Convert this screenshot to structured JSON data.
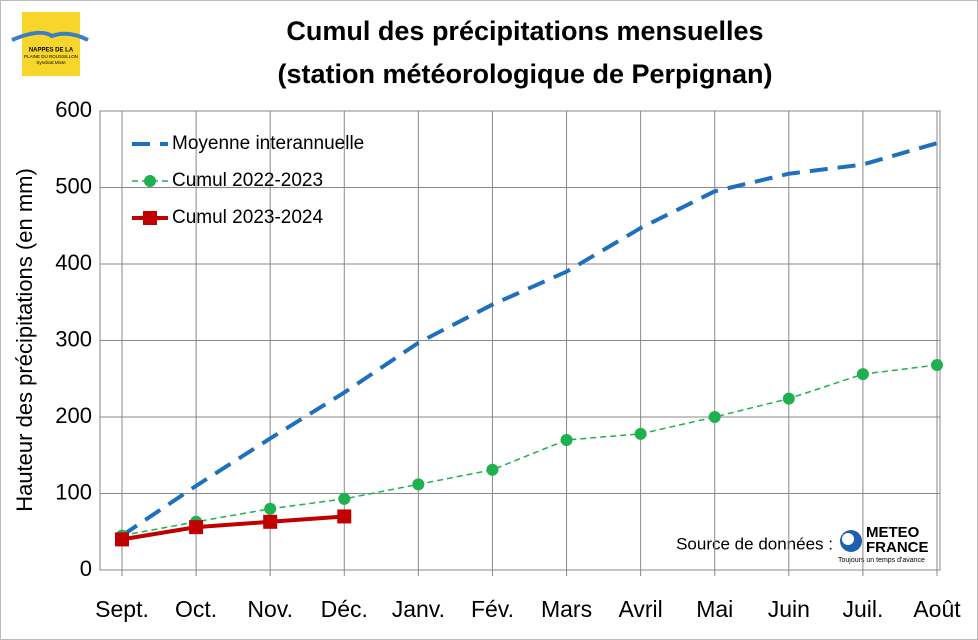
{
  "chart_data": {
    "type": "line",
    "title": [
      "Cumul des précipitations mensuelles",
      "(station météorologique de Perpignan)"
    ],
    "y_label": "Hauteur des précipitations (en mm)",
    "categories": [
      "Sept.",
      "Oct.",
      "Nov.",
      "Déc.",
      "Janv.",
      "Fév.",
      "Mars",
      "Avril",
      "Mai",
      "Juin",
      "Juil.",
      "Août"
    ],
    "series": [
      {
        "name": "Moyenne interannuelle",
        "color": "#1f6fbf",
        "dash": true,
        "marker": "none",
        "values": [
          45,
          110,
          172,
          232,
          297,
          347,
          390,
          447,
          495,
          518,
          530,
          558
        ]
      },
      {
        "name": "Cumul 2022-2023",
        "color": "#1fb050",
        "dash": true,
        "marker": "circle",
        "values": [
          45,
          63,
          80,
          93,
          112,
          131,
          170,
          178,
          200,
          224,
          256,
          268
        ]
      },
      {
        "name": "Cumul 2023-2024",
        "color": "#c00000",
        "dash": false,
        "marker": "square",
        "values": [
          40,
          56,
          63,
          70,
          null,
          null,
          null,
          null,
          null,
          null,
          null,
          null
        ]
      }
    ],
    "ylim": [
      0,
      600
    ],
    "yticks": [
      0,
      100,
      200,
      300,
      400,
      500,
      600
    ],
    "grid": true,
    "legend": "top-left",
    "annotation": "Source de données :",
    "logos": {
      "left": [
        "NAPPES DE LA",
        "PLAINE DU ROUSSILLON",
        "Syndicat Mixte"
      ],
      "right": [
        "METEO",
        "FRANCE",
        "Toujours un temps d'avance"
      ]
    }
  }
}
